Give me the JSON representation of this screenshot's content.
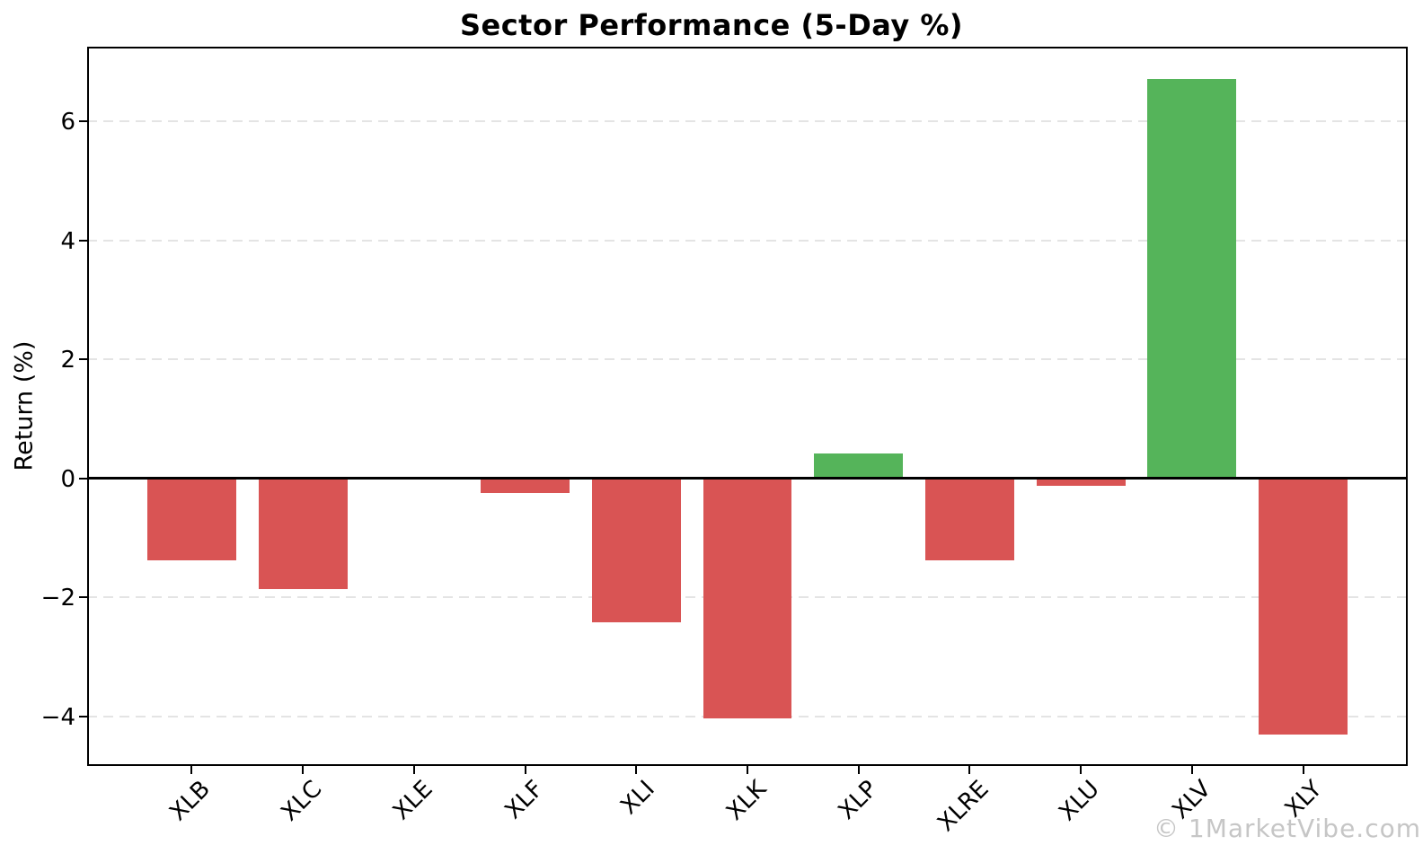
{
  "title": "Sector Performance (5-Day %)",
  "watermark": "© 1MarketVibe.com",
  "colors": {
    "positive_bar": "#55b45a",
    "negative_bar": "#d95454",
    "gridline": "#e4e4e4",
    "axis": "#000000",
    "text": "#000000",
    "watermark": "#c6c6c6",
    "background": "#ffffff"
  },
  "chart_data": {
    "type": "bar",
    "title": "Sector Performance (5-Day %)",
    "xlabel": "",
    "ylabel": "Return (%)",
    "categories": [
      "XLB",
      "XLC",
      "XLE",
      "XLF",
      "XLI",
      "XLK",
      "XLP",
      "XLRE",
      "XLU",
      "XLV",
      "XLY"
    ],
    "values": [
      -1.37,
      -1.86,
      0.0,
      -0.24,
      -2.41,
      -4.03,
      0.42,
      -1.37,
      -0.13,
      6.7,
      -4.3
    ],
    "bar_color_rule": "green if positive, red if negative",
    "ylim": [
      -4.83,
      7.25
    ],
    "ytick_values": [
      6,
      4,
      2,
      0,
      -2,
      -4
    ],
    "ytick_labels": [
      "6",
      "4",
      "2",
      "0",
      "−2",
      "−4"
    ],
    "grid": "horizontal dashed lines at y ticks",
    "zero_line": true,
    "legend": null,
    "xtick_rotation_deg": 45
  }
}
